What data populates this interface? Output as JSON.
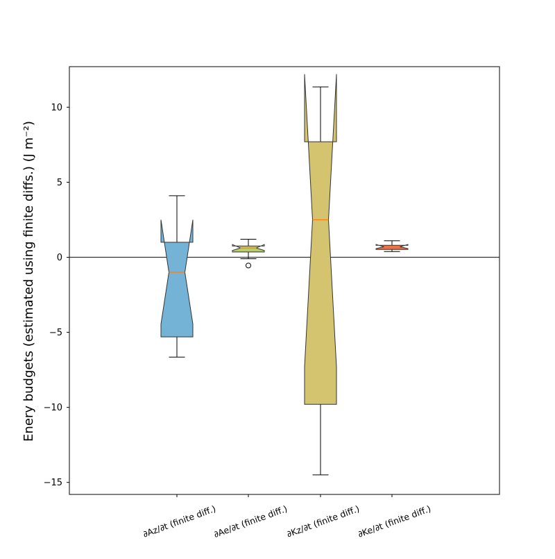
{
  "chart_data": {
    "type": "boxplot",
    "title": "",
    "xlabel": "",
    "ylabel": "Enery budgets (estimated using finite diffs.) (J m⁻²)",
    "ylim": [
      -15.8,
      12.7
    ],
    "yticks": [
      10,
      5,
      0,
      -5,
      -10,
      -15
    ],
    "ytick_labels": [
      "10",
      "5",
      "0",
      "−5",
      "−10",
      "−15"
    ],
    "zero_line": true,
    "grid": false,
    "legend": "none",
    "notched": true,
    "categories": [
      "∂Az/∂t (finite diff.)",
      "∂Ae/∂t (finite diff.)",
      "∂Kz/∂t (finite diff.)",
      "∂Ke/∂t (finite diff.)"
    ],
    "boxes": [
      {
        "whisker_low": -6.65,
        "q1": -5.3,
        "notch_low": -4.45,
        "median": -1.0,
        "notch_high": 2.5,
        "q3": 1.0,
        "whisker_high": 4.1,
        "outliers": [],
        "color": "#74b3d6"
      },
      {
        "whisker_low": -0.1,
        "q1": 0.35,
        "notch_low": 0.45,
        "median": 0.62,
        "notch_high": 0.85,
        "q3": 0.75,
        "whisker_high": 1.2,
        "outliers": [
          -0.55
        ],
        "color": "#b9cd6b"
      },
      {
        "whisker_low": -14.5,
        "q1": -9.8,
        "notch_low": -7.3,
        "median": 2.5,
        "notch_high": 12.2,
        "q3": 7.7,
        "whisker_high": 11.35,
        "outliers": [],
        "color": "#d4c36f"
      },
      {
        "whisker_low": 0.38,
        "q1": 0.52,
        "notch_low": 0.58,
        "median": 0.7,
        "notch_high": 0.85,
        "q3": 0.8,
        "whisker_high": 1.1,
        "outliers": [],
        "color": "#e7714a"
      }
    ],
    "median_color": "#ff7f0e"
  }
}
